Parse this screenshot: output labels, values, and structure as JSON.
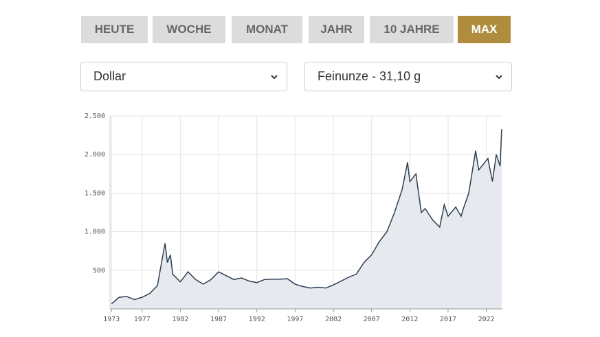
{
  "tabs": [
    "HEUTE",
    "WOCHE",
    "MONAT",
    "JAHR",
    "10 JAHRE",
    "MAX"
  ],
  "active_tab": 5,
  "selects": [
    "Dollar",
    "Feinunze - 31,10 g"
  ],
  "chart_data": {
    "type": "area",
    "x": [
      1973,
      1974,
      1975,
      1976,
      1977,
      1978,
      1979,
      1980,
      1980.3,
      1980.7,
      1981,
      1982,
      1983,
      1984,
      1985,
      1986,
      1987,
      1988,
      1989,
      1990,
      1991,
      1992,
      1993,
      1994,
      1995,
      1996,
      1997,
      1998,
      1999,
      2000,
      2001,
      2002,
      2003,
      2004,
      2005,
      2006,
      2007,
      2008,
      2009,
      2010,
      2011,
      2011.7,
      2012,
      2012.8,
      2013,
      2013.5,
      2014,
      2015,
      2015.9,
      2016.5,
      2017,
      2018,
      2018.7,
      2019,
      2019.7,
      2020.6,
      2021,
      2022.2,
      2022.8,
      2023.3,
      2023.8,
      2024
    ],
    "series": [
      {
        "color": "#2d3e50",
        "fill": "#e6eaef",
        "values": [
          65,
          150,
          160,
          120,
          150,
          200,
          300,
          850,
          600,
          700,
          450,
          350,
          480,
          380,
          320,
          380,
          480,
          430,
          380,
          400,
          360,
          340,
          380,
          385,
          385,
          390,
          320,
          290,
          270,
          280,
          270,
          310,
          360,
          410,
          450,
          600,
          700,
          870,
          1000,
          1250,
          1550,
          1900,
          1650,
          1750,
          1600,
          1250,
          1300,
          1150,
          1060,
          1350,
          1200,
          1320,
          1200,
          1300,
          1500,
          2050,
          1800,
          1950,
          1650,
          2000,
          1850,
          2330
        ]
      }
    ],
    "xlim": [
      1972.8,
      2024.1
    ],
    "xticks": [
      1973,
      1977,
      1982,
      1987,
      1992,
      1997,
      2002,
      2007,
      2012,
      2017,
      2022
    ],
    "ylim": [
      0,
      2500
    ],
    "yticks": [
      {
        "value": 500,
        "label": "500"
      },
      {
        "value": 1000,
        "label": "1.000"
      },
      {
        "value": 1500,
        "label": "1.500"
      },
      {
        "value": 2000,
        "label": "2.000"
      },
      {
        "value": 2500,
        "label": "2.500"
      }
    ],
    "grid": true
  }
}
